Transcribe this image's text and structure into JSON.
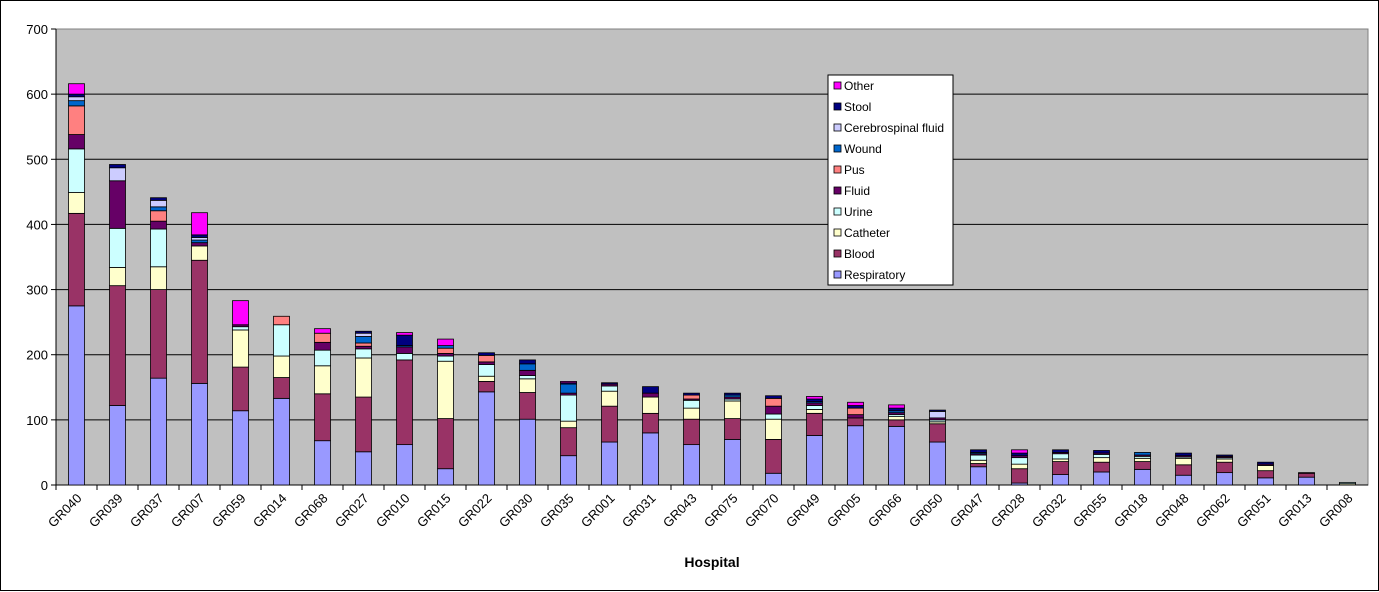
{
  "chart_data": {
    "type": "bar",
    "stacked": true,
    "title": "",
    "xlabel": "Hospital",
    "ylabel": "",
    "ylim": [
      0,
      700
    ],
    "yticks": [
      0,
      100,
      200,
      300,
      400,
      500,
      600,
      700
    ],
    "grid": true,
    "legend_position": "top-right",
    "plot_background": "#C0C0C0",
    "categories": [
      "GR040",
      "GR039",
      "GR037",
      "GR007",
      "GR059",
      "GR014",
      "GR068",
      "GR027",
      "GR010",
      "GR015",
      "GR022",
      "GR030",
      "GR035",
      "GR001",
      "GR031",
      "GR043",
      "GR075",
      "GR070",
      "GR049",
      "GR005",
      "GR066",
      "GR050",
      "GR047",
      "GR028",
      "GR032",
      "GR055",
      "GR018",
      "GR048",
      "GR062",
      "GR051",
      "GR013",
      "GR008"
    ],
    "series": [
      {
        "name": "Respiratory",
        "color": "#9999FF",
        "values": [
          275,
          122,
          164,
          156,
          114,
          133,
          68,
          51,
          62,
          25,
          143,
          101,
          45,
          66,
          80,
          62,
          70,
          18,
          76,
          91,
          90,
          66,
          28,
          3,
          16,
          20,
          24,
          15,
          19,
          11,
          12,
          0
        ]
      },
      {
        "name": "Blood",
        "color": "#993366",
        "values": [
          142,
          184,
          136,
          189,
          67,
          32,
          72,
          84,
          130,
          77,
          16,
          41,
          43,
          55,
          30,
          39,
          32,
          52,
          34,
          12,
          10,
          28,
          5,
          22,
          20,
          15,
          12,
          16,
          16,
          11,
          6,
          0
        ]
      },
      {
        "name": "Catheter",
        "color": "#FFFFCC",
        "values": [
          32,
          28,
          35,
          22,
          57,
          33,
          43,
          60,
          0,
          88,
          8,
          21,
          10,
          23,
          25,
          17,
          27,
          31,
          6,
          0,
          5,
          3,
          5,
          7,
          4,
          7,
          5,
          10,
          5,
          8,
          1,
          2
        ]
      },
      {
        "name": "Urine",
        "color": "#CCFFFF",
        "values": [
          67,
          60,
          58,
          0,
          5,
          48,
          24,
          14,
          10,
          8,
          18,
          5,
          40,
          8,
          0,
          12,
          3,
          8,
          6,
          0,
          3,
          3,
          8,
          10,
          8,
          5,
          3,
          2,
          2,
          0,
          0,
          2
        ]
      },
      {
        "name": "Fluid",
        "color": "#660066",
        "values": [
          22,
          73,
          12,
          5,
          3,
          0,
          12,
          4,
          10,
          4,
          4,
          8,
          3,
          3,
          6,
          2,
          3,
          12,
          4,
          5,
          3,
          3,
          2,
          3,
          2,
          2,
          2,
          2,
          2,
          2,
          0,
          0
        ]
      },
      {
        "name": "Pus",
        "color": "#FF8080",
        "values": [
          44,
          0,
          16,
          0,
          0,
          13,
          14,
          5,
          0,
          8,
          10,
          0,
          0,
          0,
          0,
          6,
          0,
          12,
          0,
          10,
          0,
          0,
          0,
          0,
          0,
          0,
          0,
          0,
          0,
          0,
          0,
          0
        ]
      },
      {
        "name": "Wound",
        "color": "#0066CC",
        "values": [
          8,
          0,
          6,
          4,
          0,
          0,
          0,
          10,
          2,
          4,
          0,
          10,
          14,
          0,
          0,
          0,
          3,
          0,
          2,
          0,
          3,
          0,
          2,
          0,
          0,
          0,
          4,
          0,
          0,
          0,
          0,
          0
        ]
      },
      {
        "name": "Cerebrospinal fluid",
        "color": "#CCCCFF",
        "values": [
          6,
          20,
          10,
          4,
          0,
          0,
          0,
          5,
          0,
          0,
          0,
          0,
          0,
          0,
          0,
          0,
          0,
          0,
          0,
          0,
          0,
          10,
          0,
          0,
          0,
          0,
          0,
          0,
          0,
          0,
          0,
          0
        ]
      },
      {
        "name": "Stool",
        "color": "#000080",
        "values": [
          4,
          5,
          4,
          4,
          0,
          0,
          0,
          3,
          16,
          0,
          4,
          6,
          2,
          2,
          10,
          3,
          3,
          4,
          4,
          4,
          4,
          2,
          4,
          4,
          4,
          4,
          0,
          4,
          2,
          3,
          0,
          0
        ]
      },
      {
        "name": "Other",
        "color": "#FF00FF",
        "values": [
          16,
          0,
          0,
          34,
          37,
          0,
          7,
          0,
          4,
          10,
          0,
          0,
          2,
          0,
          0,
          0,
          0,
          0,
          4,
          5,
          5,
          0,
          0,
          5,
          0,
          0,
          0,
          0,
          0,
          0,
          0,
          0
        ]
      }
    ]
  }
}
